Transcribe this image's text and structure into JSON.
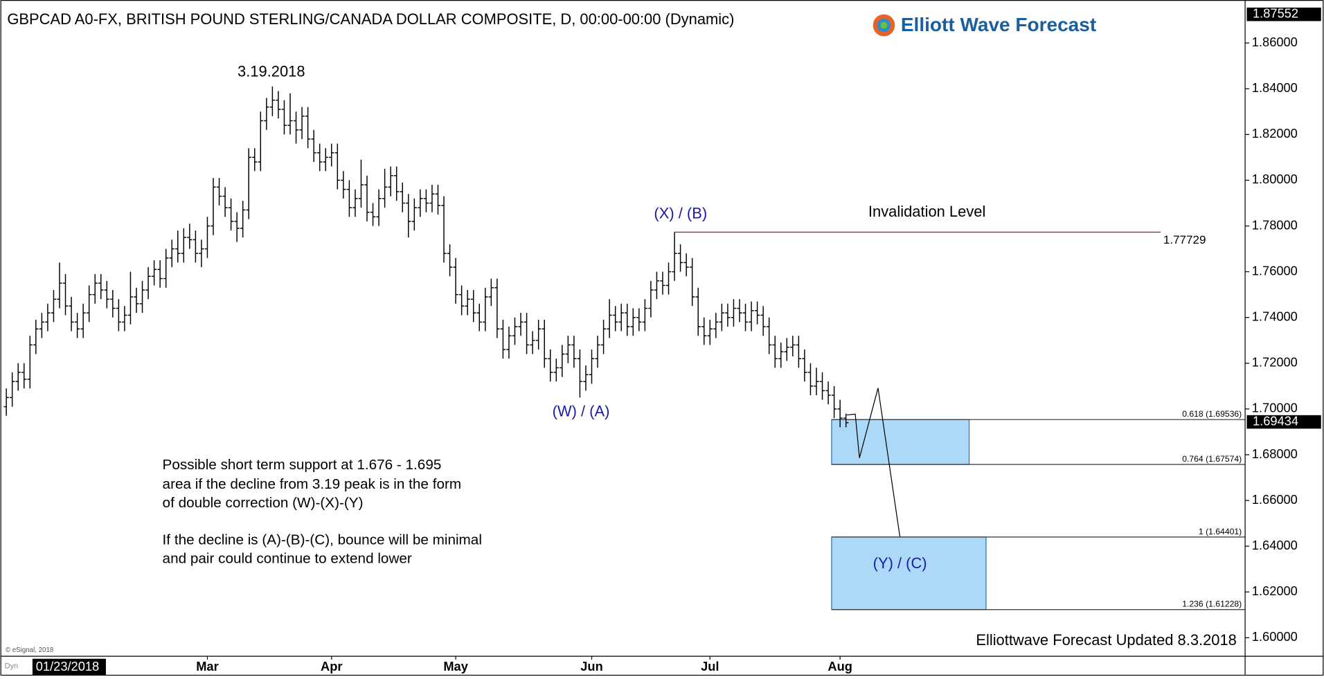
{
  "chart_data": {
    "type": "ohlc",
    "title": "GBPCAD A0-FX, BRITISH POUND STERLING/CANADA DOLLAR COMPOSITE, D, 00:00-00:00 (Dynamic)",
    "logo": "Elliott Wave Forecast",
    "ylim": [
      1.5919,
      1.8788
    ],
    "yticks": [
      {
        "value": 1.6,
        "label": "1.60000"
      },
      {
        "value": 1.62,
        "label": "1.62000"
      },
      {
        "value": 1.64,
        "label": "1.64000"
      },
      {
        "value": 1.66,
        "label": "1.66000"
      },
      {
        "value": 1.68,
        "label": "1.68000"
      },
      {
        "value": 1.7,
        "label": "1.70000"
      },
      {
        "value": 1.72,
        "label": "1.72000"
      },
      {
        "value": 1.74,
        "label": "1.74000"
      },
      {
        "value": 1.76,
        "label": "1.76000"
      },
      {
        "value": 1.78,
        "label": "1.78000"
      },
      {
        "value": 1.8,
        "label": "1.80000"
      },
      {
        "value": 1.82,
        "label": "1.82000"
      },
      {
        "value": 1.84,
        "label": "1.84000"
      },
      {
        "value": 1.86,
        "label": "1.86000"
      }
    ],
    "xlim": [
      -1,
      209.5
    ],
    "xticks": [
      {
        "value": 34,
        "label": "Mar"
      },
      {
        "value": 55,
        "label": "Apr"
      },
      {
        "value": 76,
        "label": "May"
      },
      {
        "value": 99,
        "label": "Jun"
      },
      {
        "value": 119,
        "label": "Jul"
      },
      {
        "value": 141,
        "label": "Aug"
      }
    ],
    "start_label": "01/23/2018",
    "color": "#000000",
    "open": [
      1.701,
      1.705,
      1.712,
      1.716,
      1.713,
      1.728,
      1.735,
      1.738,
      1.742,
      1.748,
      1.755,
      1.745,
      1.738,
      1.735,
      1.742,
      1.75,
      1.755,
      1.752,
      1.748,
      1.744,
      1.738,
      1.741,
      1.749,
      1.746,
      1.752,
      1.758,
      1.761,
      1.757,
      1.766,
      1.77,
      1.768,
      1.775,
      1.774,
      1.768,
      1.77,
      1.78,
      1.797,
      1.793,
      1.788,
      1.782,
      1.779,
      1.787,
      1.81,
      1.808,
      1.826,
      1.832,
      1.835,
      1.831,
      1.824,
      1.826,
      1.822,
      1.828,
      1.818,
      1.812,
      1.808,
      1.81,
      1.812,
      1.8,
      1.796,
      1.788,
      1.792,
      1.798,
      1.786,
      1.784,
      1.792,
      1.797,
      1.802,
      1.795,
      1.79,
      1.782,
      1.788,
      1.792,
      1.79,
      1.794,
      1.789,
      1.768,
      1.762,
      1.75,
      1.745,
      1.748,
      1.742,
      1.738,
      1.749,
      1.753,
      1.735,
      1.726,
      1.732,
      1.736,
      1.738,
      1.728,
      1.73,
      1.735,
      1.722,
      1.716,
      1.718,
      1.724,
      1.728,
      1.722,
      1.712,
      1.715,
      1.722,
      1.728,
      1.735,
      1.741,
      1.738,
      1.742,
      1.736,
      1.74,
      1.738,
      1.744,
      1.752,
      1.756,
      1.754,
      1.76,
      1.768,
      1.764,
      1.762,
      1.749,
      1.736,
      1.732,
      1.735,
      1.738,
      1.742,
      1.74,
      1.744,
      1.742,
      1.738,
      1.743,
      1.741,
      1.736,
      1.728,
      1.722,
      1.725,
      1.727,
      1.728,
      1.722,
      1.716,
      1.71,
      1.712,
      1.708,
      1.706,
      1.7,
      1.696
    ],
    "high": [
      1.709,
      1.716,
      1.72,
      1.72,
      1.732,
      1.739,
      1.742,
      1.746,
      1.752,
      1.764,
      1.759,
      1.749,
      1.742,
      1.746,
      1.754,
      1.759,
      1.759,
      1.756,
      1.752,
      1.748,
      1.745,
      1.76,
      1.753,
      1.756,
      1.762,
      1.765,
      1.765,
      1.77,
      1.774,
      1.778,
      1.779,
      1.781,
      1.778,
      1.774,
      1.784,
      1.801,
      1.801,
      1.797,
      1.792,
      1.786,
      1.791,
      1.814,
      1.814,
      1.83,
      1.836,
      1.841,
      1.839,
      1.835,
      1.838,
      1.83,
      1.832,
      1.832,
      1.822,
      1.816,
      1.814,
      1.816,
      1.816,
      1.804,
      1.8,
      1.796,
      1.809,
      1.802,
      1.79,
      1.796,
      1.805,
      1.806,
      1.806,
      1.799,
      1.794,
      1.792,
      1.796,
      1.796,
      1.798,
      1.798,
      1.793,
      1.772,
      1.766,
      1.754,
      1.752,
      1.752,
      1.746,
      1.753,
      1.757,
      1.757,
      1.739,
      1.736,
      1.74,
      1.742,
      1.742,
      1.734,
      1.739,
      1.739,
      1.726,
      1.722,
      1.728,
      1.732,
      1.732,
      1.726,
      1.719,
      1.726,
      1.732,
      1.739,
      1.748,
      1.745,
      1.746,
      1.746,
      1.744,
      1.744,
      1.748,
      1.756,
      1.76,
      1.76,
      1.764,
      1.77729,
      1.772,
      1.768,
      1.766,
      1.753,
      1.74,
      1.739,
      1.742,
      1.746,
      1.746,
      1.748,
      1.748,
      1.746,
      1.747,
      1.747,
      1.745,
      1.74,
      1.732,
      1.729,
      1.731,
      1.732,
      1.732,
      1.726,
      1.72,
      1.718,
      1.716,
      1.712,
      1.71,
      1.704,
      1.698
    ],
    "low": [
      1.697,
      1.701,
      1.708,
      1.709,
      1.709,
      1.724,
      1.731,
      1.734,
      1.738,
      1.744,
      1.741,
      1.734,
      1.731,
      1.731,
      1.738,
      1.746,
      1.748,
      1.744,
      1.74,
      1.734,
      1.734,
      1.737,
      1.742,
      1.742,
      1.748,
      1.754,
      1.753,
      1.753,
      1.762,
      1.764,
      1.764,
      1.77,
      1.764,
      1.762,
      1.766,
      1.776,
      1.789,
      1.784,
      1.778,
      1.773,
      1.775,
      1.783,
      1.804,
      1.804,
      1.822,
      1.828,
      1.827,
      1.82,
      1.82,
      1.816,
      1.818,
      1.814,
      1.808,
      1.804,
      1.804,
      1.806,
      1.796,
      1.792,
      1.784,
      1.784,
      1.788,
      1.782,
      1.78,
      1.78,
      1.788,
      1.793,
      1.791,
      1.786,
      1.775,
      1.778,
      1.784,
      1.786,
      1.786,
      1.785,
      1.764,
      1.758,
      1.746,
      1.741,
      1.741,
      1.738,
      1.734,
      1.734,
      1.745,
      1.731,
      1.722,
      1.722,
      1.728,
      1.732,
      1.724,
      1.724,
      1.726,
      1.718,
      1.712,
      1.712,
      1.714,
      1.72,
      1.718,
      1.705,
      1.708,
      1.711,
      1.718,
      1.724,
      1.731,
      1.734,
      1.734,
      1.732,
      1.732,
      1.734,
      1.734,
      1.74,
      1.748,
      1.75,
      1.75,
      1.756,
      1.76,
      1.758,
      1.745,
      1.732,
      1.728,
      1.728,
      1.731,
      1.734,
      1.736,
      1.736,
      1.738,
      1.734,
      1.734,
      1.737,
      1.732,
      1.724,
      1.718,
      1.718,
      1.721,
      1.723,
      1.718,
      1.712,
      1.706,
      1.706,
      1.704,
      1.702,
      1.696,
      1.692,
      1.692
    ],
    "close": [
      1.705,
      1.712,
      1.716,
      1.713,
      1.728,
      1.735,
      1.738,
      1.742,
      1.748,
      1.755,
      1.745,
      1.738,
      1.735,
      1.742,
      1.75,
      1.755,
      1.752,
      1.748,
      1.744,
      1.738,
      1.741,
      1.749,
      1.746,
      1.752,
      1.758,
      1.761,
      1.757,
      1.766,
      1.77,
      1.768,
      1.775,
      1.774,
      1.768,
      1.77,
      1.78,
      1.797,
      1.793,
      1.788,
      1.782,
      1.779,
      1.787,
      1.81,
      1.808,
      1.826,
      1.832,
      1.835,
      1.831,
      1.824,
      1.826,
      1.822,
      1.828,
      1.818,
      1.812,
      1.808,
      1.81,
      1.812,
      1.8,
      1.796,
      1.788,
      1.792,
      1.798,
      1.786,
      1.784,
      1.792,
      1.797,
      1.802,
      1.795,
      1.79,
      1.782,
      1.788,
      1.792,
      1.79,
      1.794,
      1.789,
      1.768,
      1.762,
      1.75,
      1.745,
      1.748,
      1.742,
      1.738,
      1.749,
      1.753,
      1.735,
      1.726,
      1.732,
      1.736,
      1.738,
      1.728,
      1.73,
      1.735,
      1.722,
      1.716,
      1.718,
      1.724,
      1.728,
      1.722,
      1.712,
      1.715,
      1.722,
      1.728,
      1.735,
      1.741,
      1.738,
      1.742,
      1.736,
      1.74,
      1.738,
      1.744,
      1.752,
      1.756,
      1.754,
      1.76,
      1.768,
      1.764,
      1.762,
      1.749,
      1.736,
      1.732,
      1.735,
      1.738,
      1.742,
      1.74,
      1.744,
      1.742,
      1.738,
      1.743,
      1.741,
      1.736,
      1.728,
      1.722,
      1.725,
      1.727,
      1.728,
      1.722,
      1.716,
      1.71,
      1.712,
      1.708,
      1.706,
      1.7,
      1.696,
      1.694
    ],
    "top_price": 1.87552,
    "last_price": 1.69434,
    "invalidation": {
      "label": "Invalidation Level",
      "value": 1.77729
    },
    "levels": [
      {
        "label": "0.618 (1.69536)",
        "value": 1.69536
      },
      {
        "label": "0.764 (1.67574)",
        "value": 1.67574
      },
      {
        "label": "1 (1.64401)",
        "value": 1.64401
      },
      {
        "label": "1.236 (1.61228)",
        "value": 1.61228
      }
    ],
    "annotations": [
      "3.19.2018",
      "(X) / (B)",
      "(W) / (A)",
      "(Y) / (C)"
    ],
    "notes": [
      "Possible short term support at 1.676 - 1.695",
      "area if the decline from 3.19 peak is in the form",
      "of double correction (W)-(X)-(Y)",
      "If the decline is (A)-(B)-(C), bounce will be minimal",
      "and pair could continue to extend lower"
    ],
    "footer": "Elliottwave Forecast Updated 8.3.2018",
    "source": "© eSignal, 2018",
    "mode": "Dyn"
  }
}
